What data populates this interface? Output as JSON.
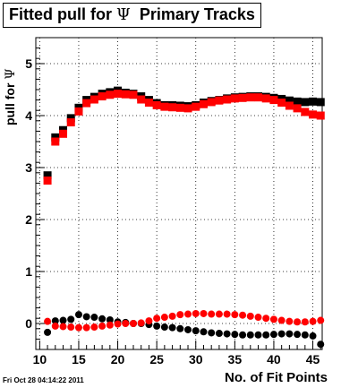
{
  "title": {
    "prefix": "Fitted pull for",
    "symbol": "Ψ",
    "suffix": "Primary Tracks"
  },
  "ylabel": {
    "prefix": "pull for",
    "symbol": "Ψ"
  },
  "xlabel": "No. of Fit Points",
  "timestamp": "Fri Oct 28 04:14:22 2011",
  "chart_data": {
    "type": "scatter",
    "xlim": [
      9.5,
      46.2
    ],
    "ylim": [
      -0.5,
      5.5
    ],
    "x_ticks": [
      10,
      15,
      20,
      25,
      30,
      35,
      40,
      45
    ],
    "y_ticks": [
      0,
      1,
      2,
      3,
      4,
      5
    ],
    "grid": true,
    "x": [
      11,
      12,
      13,
      14,
      15,
      16,
      17,
      18,
      19,
      20,
      21,
      22,
      23,
      24,
      25,
      26,
      27,
      28,
      29,
      30,
      31,
      32,
      33,
      34,
      35,
      36,
      37,
      38,
      39,
      40,
      41,
      42,
      43,
      44,
      45,
      46
    ],
    "series": [
      {
        "marker": "square",
        "color": "#000000",
        "values": [
          2.85,
          3.58,
          3.72,
          3.95,
          4.15,
          4.3,
          4.36,
          4.42,
          4.45,
          4.48,
          4.44,
          4.42,
          4.37,
          4.3,
          4.24,
          4.2,
          4.2,
          4.19,
          4.18,
          4.2,
          4.25,
          4.28,
          4.3,
          4.33,
          4.35,
          4.36,
          4.37,
          4.37,
          4.36,
          4.34,
          4.32,
          4.29,
          4.27,
          4.26,
          4.27,
          4.26
        ]
      },
      {
        "marker": "square",
        "color": "#ff0000",
        "values": [
          2.75,
          3.5,
          3.65,
          3.87,
          4.08,
          4.24,
          4.31,
          4.37,
          4.4,
          4.42,
          4.41,
          4.4,
          4.31,
          4.25,
          4.2,
          4.17,
          4.16,
          4.15,
          4.14,
          4.17,
          4.22,
          4.26,
          4.29,
          4.31,
          4.33,
          4.34,
          4.35,
          4.35,
          4.33,
          4.3,
          4.25,
          4.19,
          4.14,
          4.07,
          4.02,
          4.0
        ]
      },
      {
        "marker": "circle",
        "color": "#000000",
        "values": [
          -0.17,
          0.05,
          0.06,
          0.08,
          0.17,
          0.13,
          0.12,
          0.09,
          0.07,
          0.03,
          0.02,
          0.0,
          0.0,
          -0.02,
          -0.05,
          -0.07,
          -0.08,
          -0.1,
          -0.12,
          -0.14,
          -0.16,
          -0.18,
          -0.19,
          -0.2,
          -0.21,
          -0.22,
          -0.22,
          -0.22,
          -0.22,
          -0.21,
          -0.2,
          -0.2,
          -0.21,
          -0.22,
          -0.24,
          -0.4
        ]
      },
      {
        "marker": "circle",
        "color": "#ff0000",
        "values": [
          0.04,
          -0.05,
          -0.06,
          -0.07,
          -0.08,
          -0.08,
          -0.07,
          -0.05,
          -0.03,
          -0.01,
          0.0,
          0.0,
          0.01,
          0.05,
          0.1,
          0.12,
          0.14,
          0.17,
          0.18,
          0.19,
          0.19,
          0.18,
          0.18,
          0.18,
          0.17,
          0.16,
          0.14,
          0.12,
          0.1,
          0.08,
          0.06,
          0.04,
          0.03,
          0.03,
          0.04,
          0.06
        ]
      }
    ]
  }
}
